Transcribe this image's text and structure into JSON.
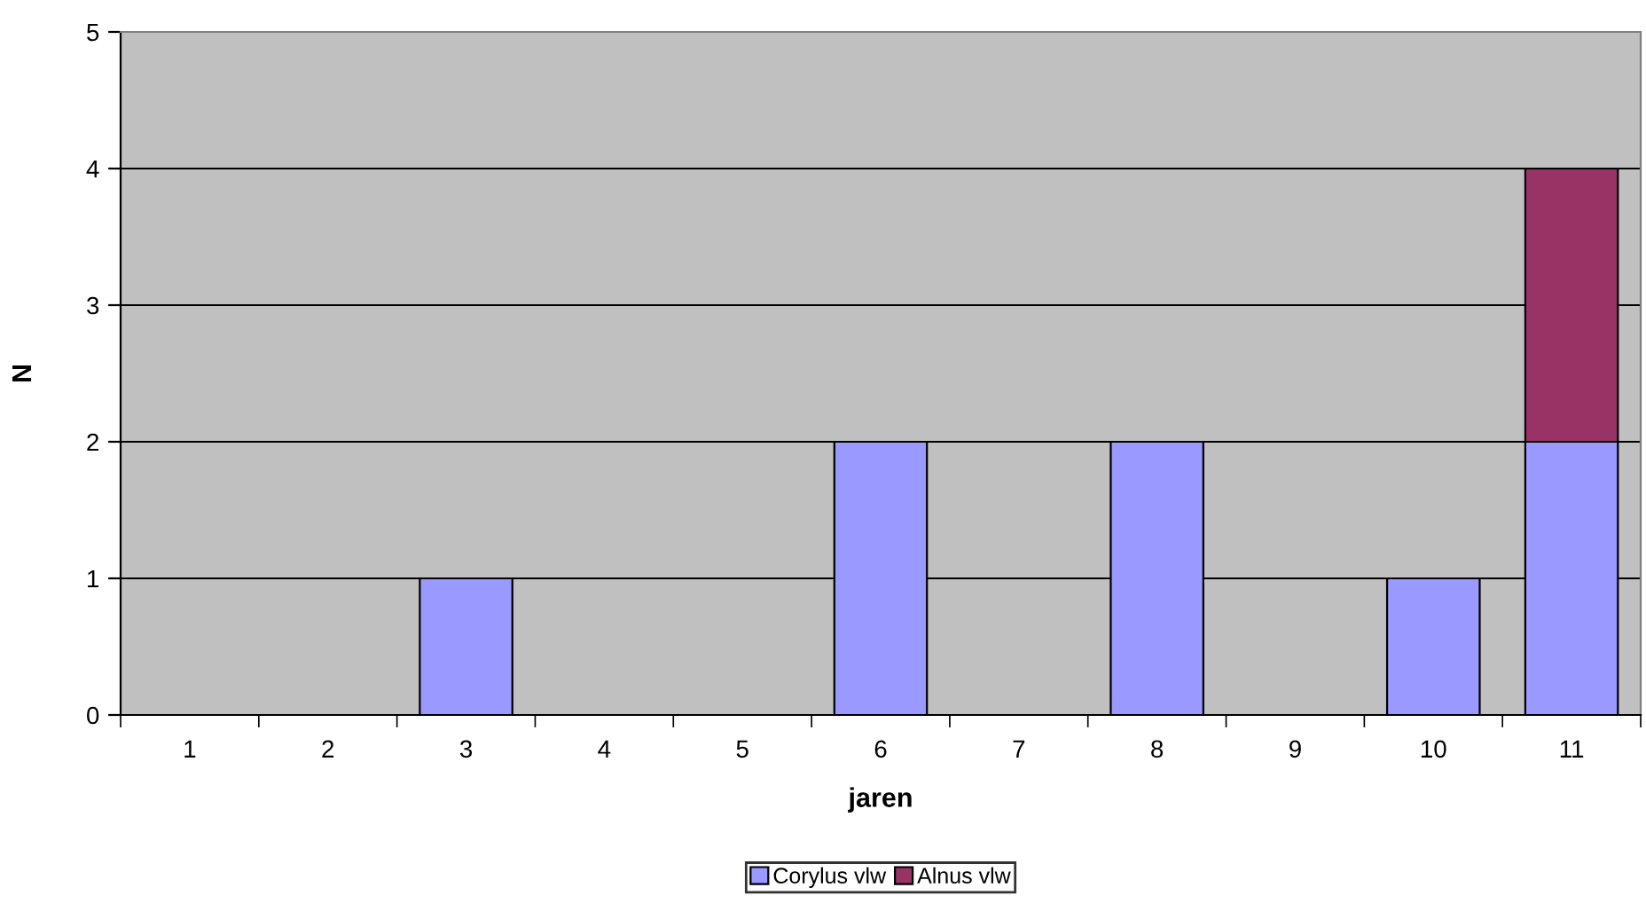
{
  "chart_data": {
    "type": "bar",
    "stacked": true,
    "xlabel": "jaren",
    "ylabel": "N",
    "categories": [
      "1",
      "2",
      "3",
      "4",
      "5",
      "6",
      "7",
      "8",
      "9",
      "10",
      "11"
    ],
    "series": [
      {
        "name": "Corylus vlw",
        "color": "#9999ff",
        "values": [
          0,
          0,
          1,
          0,
          0,
          2,
          0,
          2,
          0,
          1,
          2
        ]
      },
      {
        "name": "Alnus vlw",
        "color": "#993366",
        "values": [
          0,
          0,
          0,
          0,
          0,
          0,
          0,
          0,
          0,
          0,
          2
        ]
      }
    ],
    "ylim": [
      0,
      5
    ],
    "yticks": [
      0,
      1,
      2,
      3,
      4,
      5
    ],
    "grid": "y",
    "legend": "bottom"
  }
}
